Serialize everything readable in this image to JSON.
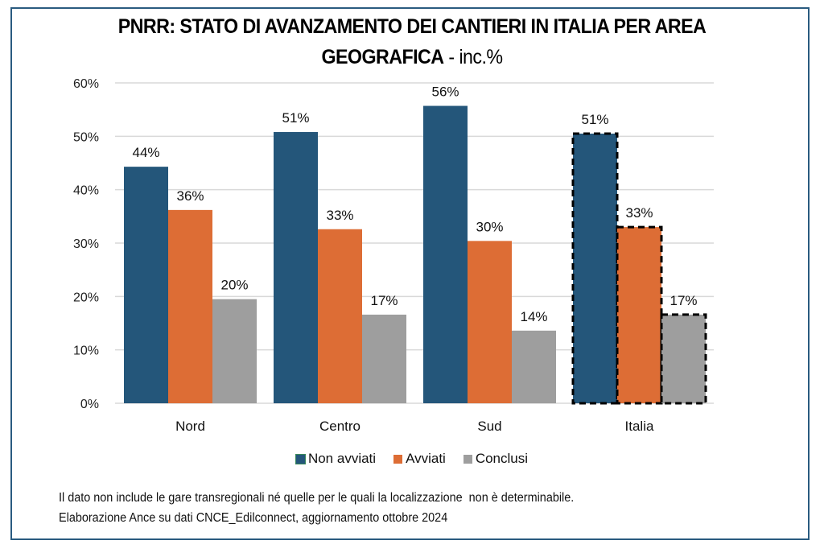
{
  "title": {
    "main": "PNRR: STATO DI AVANZAMENTO DEI CANTIERI IN ITALIA PER AREA GEOGRAFICA",
    "line1": "PNRR: STATO DI AVANZAMENTO DEI CANTIERI IN ITALIA PER AREA",
    "line2": "GEOGRAFICA",
    "suffix": " - inc.%"
  },
  "notes": [
    "Il dato non include le gare transregionali né quelle per le quali la localizzazione  non è determinabile.",
    "Elaborazione Ance su dati CNCE_Edilconnect, aggiornamento ottobre 2024"
  ],
  "colors": {
    "non_avviati": "#24567a",
    "avviati": "#dd6d35",
    "conclusi": "#9e9e9e",
    "frame": "#2a5b80",
    "grid": "#d9d9d9"
  },
  "chart_data": {
    "type": "bar",
    "title": "PNRR: STATO DI AVANZAMENTO DEI CANTIERI IN ITALIA PER AREA GEOGRAFICA - inc.%",
    "xlabel": "",
    "ylabel": "",
    "categories": [
      "Nord",
      "Centro",
      "Sud",
      "Italia"
    ],
    "series": [
      {
        "name": "Non avviati",
        "key": "non_avviati",
        "values": [
          44.3,
          50.8,
          55.7,
          50.5
        ],
        "labels": [
          "44%",
          "51%",
          "56%",
          "51%"
        ]
      },
      {
        "name": "Avviati",
        "key": "avviati",
        "values": [
          36.2,
          32.6,
          30.4,
          33.0
        ],
        "labels": [
          "36%",
          "33%",
          "30%",
          "33%"
        ]
      },
      {
        "name": "Conclusi",
        "key": "conclusi",
        "values": [
          19.5,
          16.6,
          13.6,
          16.6
        ],
        "labels": [
          "20%",
          "17%",
          "14%",
          "17%"
        ]
      }
    ],
    "highlighted_category": "Italia",
    "ylim": [
      0,
      60
    ],
    "yticks": [
      0,
      10,
      20,
      30,
      40,
      50,
      60
    ],
    "ytick_labels": [
      "0%",
      "10%",
      "20%",
      "30%",
      "40%",
      "50%",
      "60%"
    ],
    "grid": true,
    "legend": {
      "position": "bottom",
      "entries": [
        "Non avviati",
        "Avviati",
        "Conclusi"
      ]
    }
  }
}
